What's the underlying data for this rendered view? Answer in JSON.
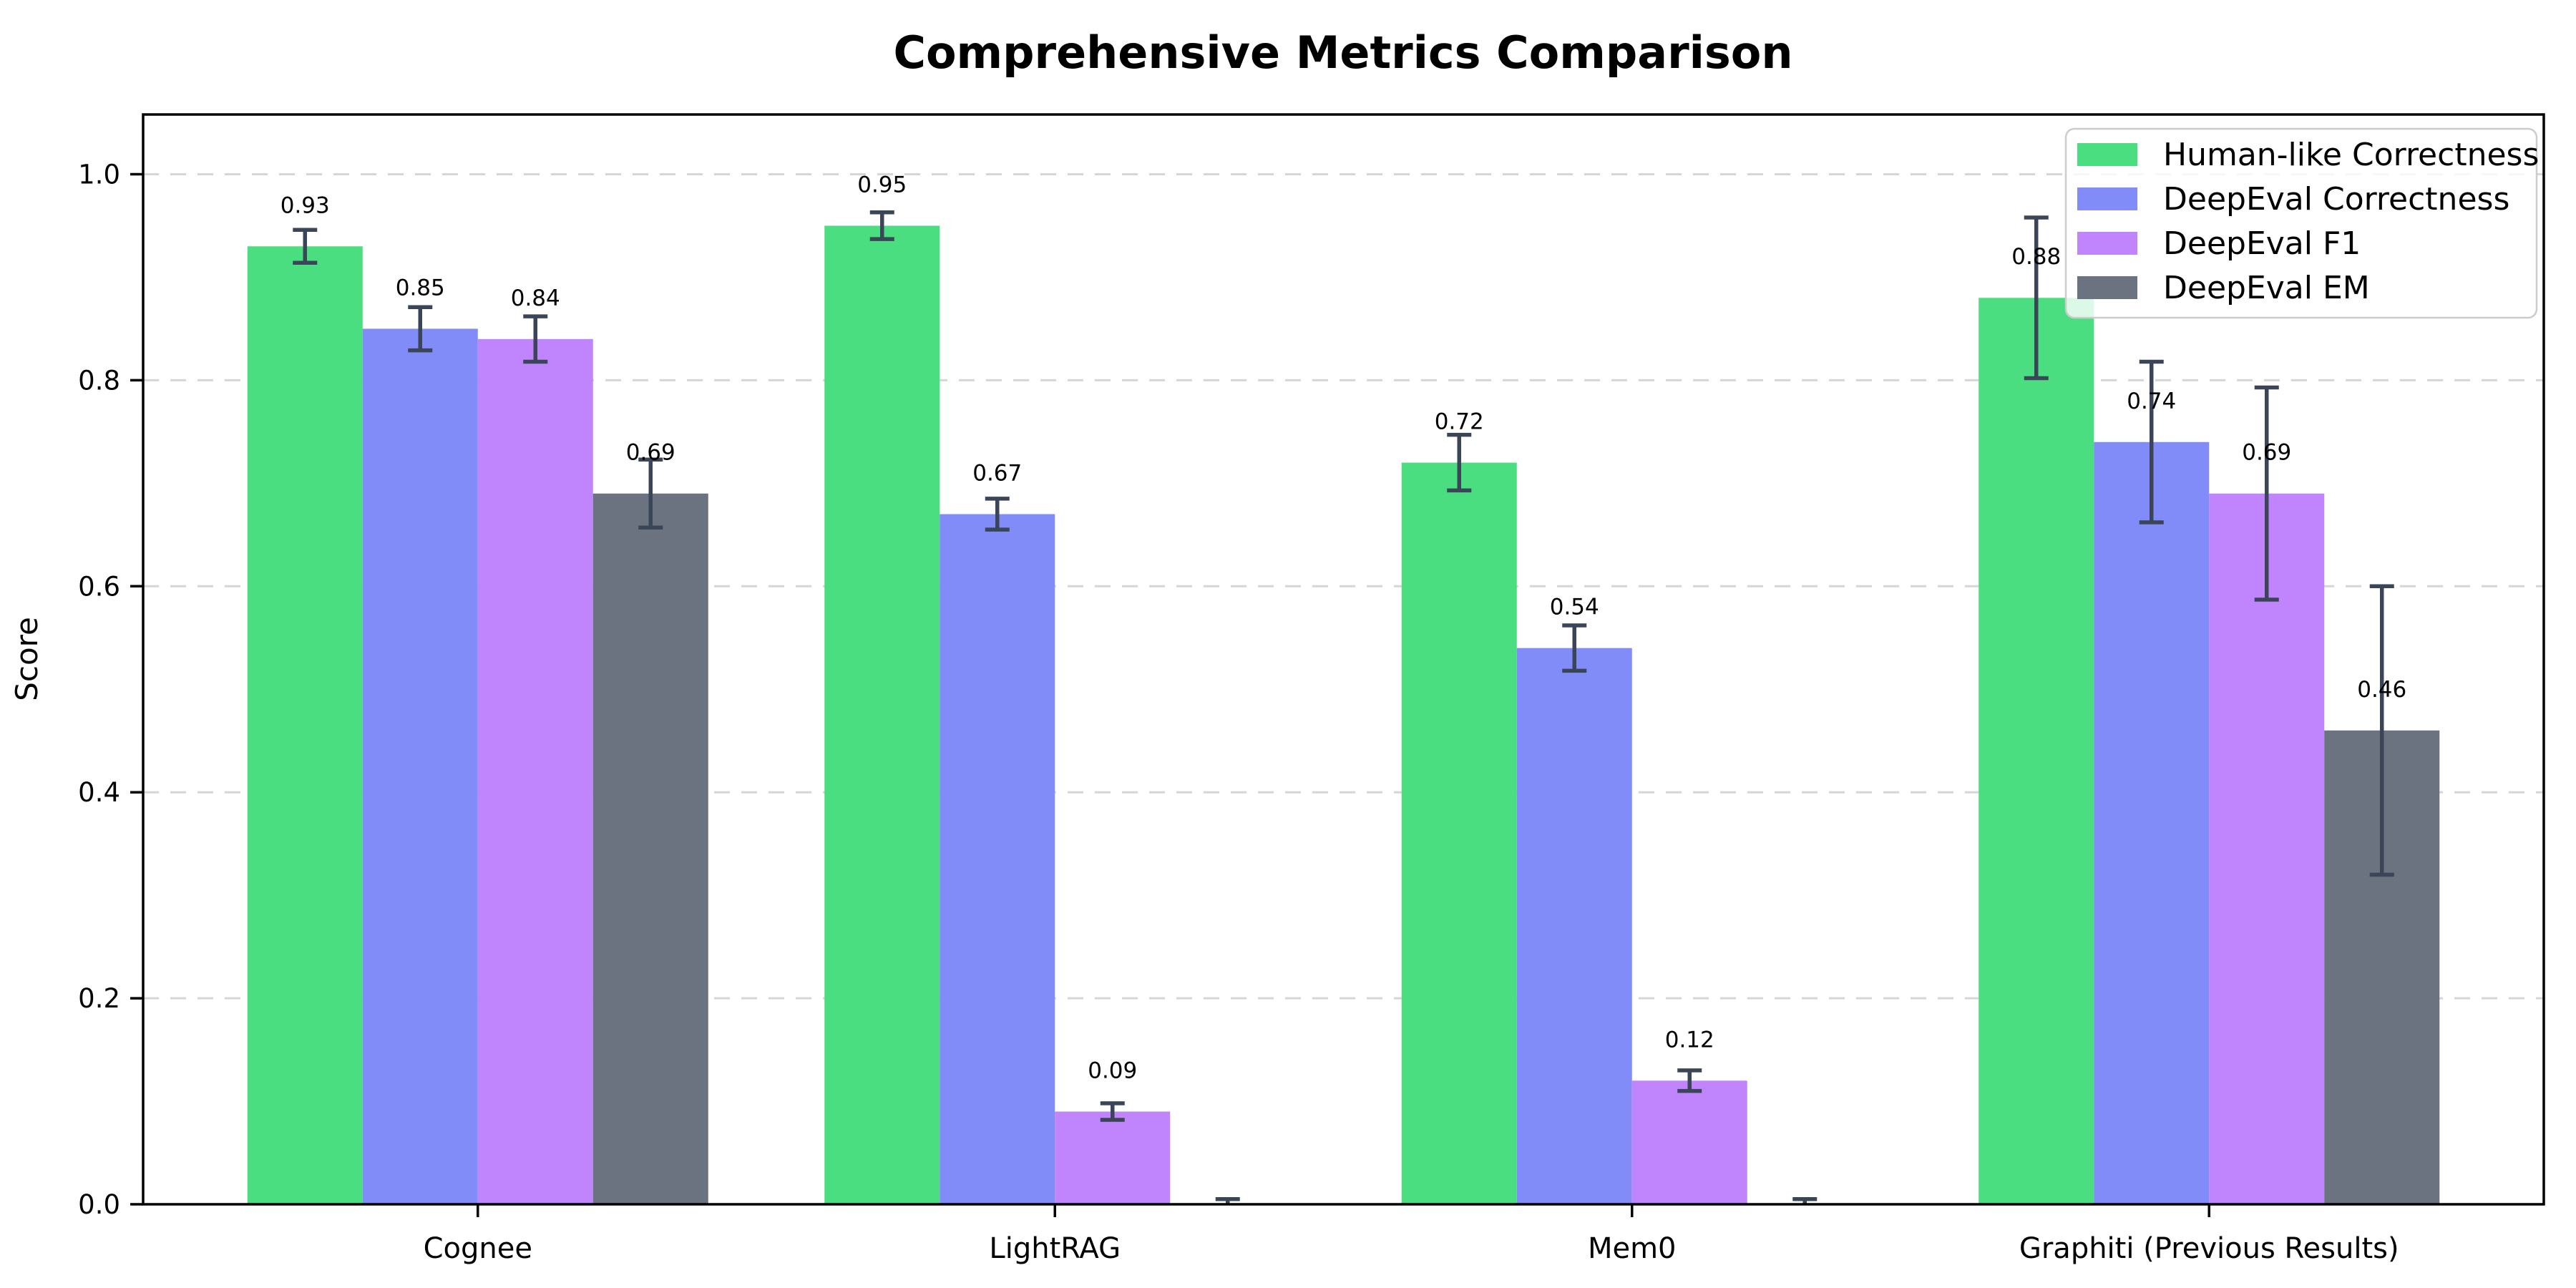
{
  "chart_data": {
    "type": "bar",
    "title": "Comprehensive Metrics Comparison",
    "ylabel": "Score",
    "categories": [
      "Cognee",
      "LightRAG",
      "Mem0",
      "Graphiti (Previous Results)"
    ],
    "series": [
      {
        "name": "Human-like Correctness",
        "color": "#4ade80",
        "values": [
          0.93,
          0.95,
          0.72,
          0.88
        ],
        "errors": [
          0.016,
          0.013,
          0.027,
          0.078
        ],
        "labels": [
          "0.93",
          "0.95",
          "0.72",
          "0.88"
        ]
      },
      {
        "name": "DeepEval Correctness",
        "color": "#818cf8",
        "values": [
          0.85,
          0.67,
          0.54,
          0.74
        ],
        "errors": [
          0.021,
          0.015,
          0.022,
          0.078
        ],
        "labels": [
          "0.85",
          "0.67",
          "0.54",
          "0.74"
        ]
      },
      {
        "name": "DeepEval F1",
        "color": "#c084fc",
        "values": [
          0.84,
          0.09,
          0.12,
          0.69
        ],
        "errors": [
          0.022,
          0.008,
          0.01,
          0.103
        ],
        "labels": [
          "0.84",
          "0.09",
          "0.12",
          "0.69"
        ]
      },
      {
        "name": "DeepEval EM",
        "color": "#6b7280",
        "values": [
          0.69,
          0.0,
          0.0,
          0.46
        ],
        "errors": [
          0.033,
          0.005,
          0.005,
          0.14
        ],
        "labels": [
          "0.69",
          "",
          "",
          "0.46"
        ]
      }
    ],
    "ytick_labels": [
      "0.0",
      "0.2",
      "0.4",
      "0.6",
      "0.8",
      "1.0"
    ],
    "ytick_values": [
      0.0,
      0.2,
      0.4,
      0.6,
      0.8,
      1.0
    ],
    "ylim": [
      0,
      1.058
    ],
    "grid": "dashed-horizontal",
    "legend_position": "upper-right",
    "colors": {
      "error_bar": "#3a4558",
      "grid": "#d6d6d6",
      "axis": "#000000",
      "legend_border": "#cccccc",
      "background": "#ffffff",
      "text": "#000000"
    }
  }
}
